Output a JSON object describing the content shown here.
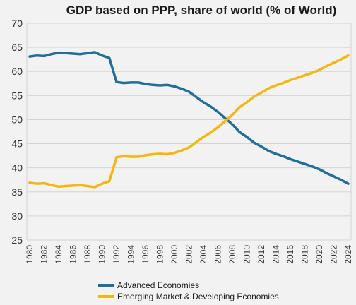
{
  "chart_data": {
    "type": "line",
    "title": "GDP based on PPP, share of world  (% of World)",
    "xlabel": "",
    "ylabel": "",
    "ylim": [
      25,
      70
    ],
    "yticks": [
      25,
      30,
      35,
      40,
      45,
      50,
      55,
      60,
      65,
      70
    ],
    "xlim": [
      1980,
      2024
    ],
    "xticks": [
      1980,
      1982,
      1984,
      1986,
      1988,
      1990,
      1992,
      1994,
      1996,
      1998,
      2000,
      2002,
      2004,
      2006,
      2008,
      2010,
      2012,
      2014,
      2016,
      2018,
      2020,
      2022,
      2024
    ],
    "grid": true,
    "legend_position": "bottom",
    "x": [
      1980,
      1981,
      1982,
      1983,
      1984,
      1985,
      1986,
      1987,
      1988,
      1989,
      1990,
      1991,
      1992,
      1993,
      1994,
      1995,
      1996,
      1997,
      1998,
      1999,
      2000,
      2001,
      2002,
      2003,
      2004,
      2005,
      2006,
      2007,
      2008,
      2009,
      2010,
      2011,
      2012,
      2013,
      2014,
      2015,
      2016,
      2017,
      2018,
      2019,
      2020,
      2021,
      2022,
      2023,
      2024
    ],
    "series": [
      {
        "name": "Advanced Economies",
        "color": "#1f6f9a",
        "values": [
          63.1,
          63.3,
          63.2,
          63.6,
          63.9,
          63.8,
          63.7,
          63.6,
          63.8,
          64.0,
          63.3,
          62.8,
          57.8,
          57.6,
          57.7,
          57.7,
          57.4,
          57.2,
          57.1,
          57.2,
          56.9,
          56.4,
          55.8,
          54.7,
          53.6,
          52.7,
          51.6,
          50.3,
          49.0,
          47.4,
          46.4,
          45.2,
          44.4,
          43.5,
          42.9,
          42.4,
          41.8,
          41.3,
          40.8,
          40.3,
          39.7,
          38.9,
          38.2,
          37.5,
          36.7
        ]
      },
      {
        "name": "Emerging Market & Developing Economies",
        "color": "#f4b710",
        "values": [
          36.9,
          36.7,
          36.8,
          36.4,
          36.1,
          36.2,
          36.3,
          36.4,
          36.2,
          36.0,
          36.7,
          37.2,
          42.2,
          42.4,
          42.3,
          42.3,
          42.6,
          42.8,
          42.9,
          42.8,
          43.1,
          43.6,
          44.2,
          45.3,
          46.4,
          47.3,
          48.4,
          49.7,
          51.0,
          52.6,
          53.6,
          54.8,
          55.6,
          56.5,
          57.1,
          57.6,
          58.2,
          58.7,
          59.2,
          59.7,
          60.3,
          61.1,
          61.8,
          62.5,
          63.3
        ]
      }
    ]
  }
}
